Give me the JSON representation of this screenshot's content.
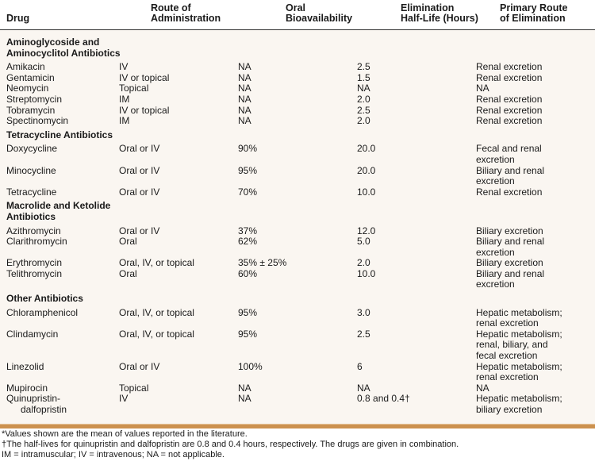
{
  "columns": [
    "Drug",
    "Route of Administration",
    "Oral Bioavailability",
    "Elimination Half-Life (Hours)",
    "Primary Route of Elimination"
  ],
  "columns_lines": [
    [
      "Drug"
    ],
    [
      "Route of",
      "Administration"
    ],
    [
      "Oral",
      "Bioavailability"
    ],
    [
      "Elimination",
      "Half-Life (Hours)"
    ],
    [
      "Primary Route",
      "of Elimination"
    ]
  ],
  "sections": [
    {
      "title": [
        "Aminoglycoside and",
        "Aminocyclitol Antibiotics"
      ],
      "rows": [
        {
          "drug": [
            "Amikacin"
          ],
          "route": "IV",
          "oral": "NA",
          "half": "2.5",
          "elim": [
            "Renal excretion"
          ]
        },
        {
          "drug": [
            "Gentamicin"
          ],
          "route": "IV or topical",
          "oral": "NA",
          "half": "1.5",
          "elim": [
            "Renal excretion"
          ]
        },
        {
          "drug": [
            "Neomycin"
          ],
          "route": "Topical",
          "oral": "NA",
          "half": "NA",
          "elim": [
            "NA"
          ]
        },
        {
          "drug": [
            "Streptomycin"
          ],
          "route": "IM",
          "oral": "NA",
          "half": "2.0",
          "elim": [
            "Renal excretion"
          ]
        },
        {
          "drug": [
            "Tobramycin"
          ],
          "route": "IV or topical",
          "oral": "NA",
          "half": "2.5",
          "elim": [
            "Renal excretion"
          ]
        },
        {
          "drug": [
            "Spectinomycin"
          ],
          "route": "IM",
          "oral": "NA",
          "half": "2.0",
          "elim": [
            "Renal excretion"
          ]
        }
      ]
    },
    {
      "title": [
        "Tetracycline Antibiotics"
      ],
      "rows": [
        {
          "drug": [
            "Doxycycline"
          ],
          "route": "Oral or IV",
          "oral": "90%",
          "half": "20.0",
          "elim": [
            "Fecal and renal",
            "excretion"
          ]
        },
        {
          "drug": [
            "Minocycline"
          ],
          "route": "Oral or IV",
          "oral": "95%",
          "half": "20.0",
          "elim": [
            "Biliary and renal",
            "excretion"
          ]
        },
        {
          "drug": [
            "Tetracycline"
          ],
          "route": "Oral or IV",
          "oral": "70%",
          "half": "10.0",
          "elim": [
            "Renal excretion"
          ]
        }
      ]
    },
    {
      "title": [
        "Macrolide and Ketolide",
        "Antibiotics"
      ],
      "rows": [
        {
          "drug": [
            "Azithromycin"
          ],
          "route": "Oral or IV",
          "oral": "37%",
          "half": "12.0",
          "elim": [
            "Biliary excretion"
          ]
        },
        {
          "drug": [
            "Clarithromycin"
          ],
          "route": "Oral",
          "oral": "62%",
          "half": "5.0",
          "elim": [
            "Biliary and renal",
            "excretion"
          ]
        },
        {
          "drug": [
            "Erythromycin"
          ],
          "route": "Oral, IV, or topical",
          "oral": "35% ± 25%",
          "half": "2.0",
          "elim": [
            "Biliary excretion"
          ]
        },
        {
          "drug": [
            "Telithromycin"
          ],
          "route": "Oral",
          "oral": "60%",
          "half": "10.0",
          "elim": [
            "Biliary and renal",
            "excretion"
          ]
        }
      ]
    },
    {
      "title": [
        "Other Antibiotics"
      ],
      "rows": [
        {
          "drug": [
            "Chloramphenicol"
          ],
          "route": "Oral, IV, or topical",
          "oral": "95%",
          "half": "3.0",
          "elim": [
            "Hepatic metabolism;",
            "renal excretion"
          ]
        },
        {
          "drug": [
            "Clindamycin"
          ],
          "route": "Oral, IV, or topical",
          "oral": "95%",
          "half": "2.5",
          "elim": [
            "Hepatic metabolism;",
            "renal, biliary, and",
            "fecal excretion"
          ]
        },
        {
          "drug": [
            "Linezolid"
          ],
          "route": "Oral or IV",
          "oral": "100%",
          "half": "6",
          "elim": [
            "Hepatic metabolism;",
            "renal excretion"
          ]
        },
        {
          "drug": [
            "Mupirocin"
          ],
          "route": "Topical",
          "oral": "NA",
          "half": "NA",
          "elim": [
            "NA"
          ]
        },
        {
          "drug": [
            "Quinupristin-",
            "dalfopristin"
          ],
          "route": "IV",
          "oral": "NA",
          "half": "0.8 and 0.4†",
          "elim": [
            "Hepatic metabolism;",
            "biliary excretion"
          ]
        }
      ]
    }
  ],
  "footnotes": [
    "*Values shown are the mean of values reported in the literature.",
    "†The half-lives for quinupristin and dalfopristin are 0.8 and 0.4 hours, respectively. The drugs are given in combination.",
    "IM = intramuscular; IV = intravenous; NA = not applicable."
  ],
  "colors": {
    "body_bg": "#faf6f1",
    "divider": "#cc914f"
  }
}
